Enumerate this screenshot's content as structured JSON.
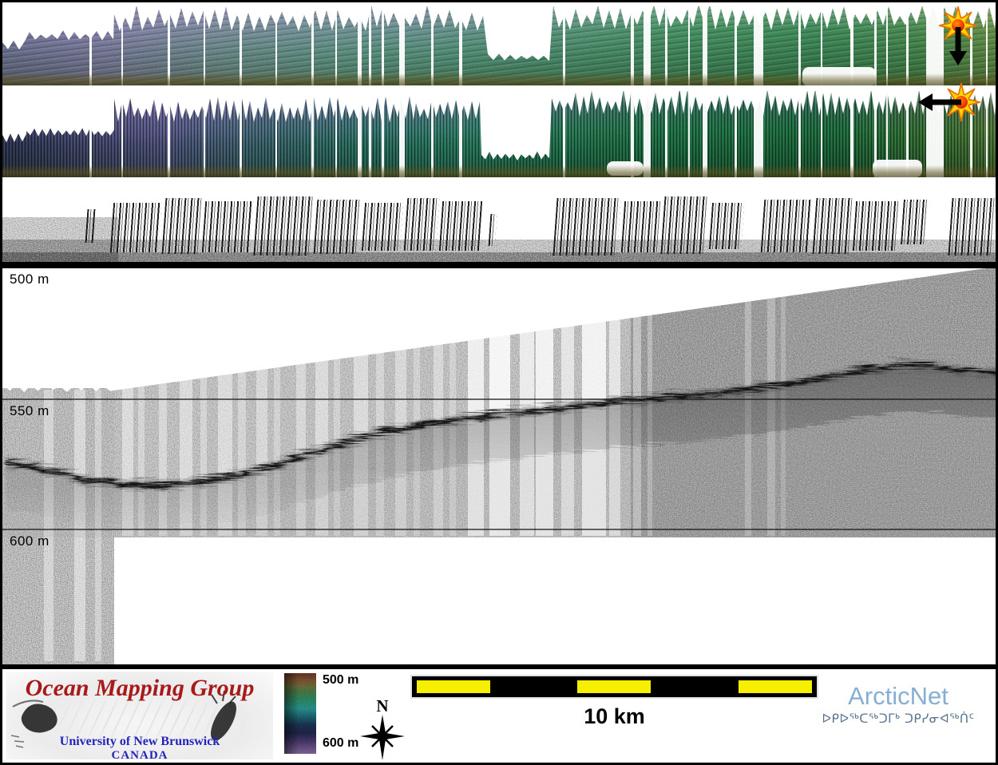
{
  "figure": {
    "description": "Ocean mapping survey figure: two coloured multibeam bathymetry swath strips, one greyscale backscatter strip, and a sub-bottom profiler section with depth gridlines",
    "strips": {
      "plan_view": "multibeam bathymetry shaded-relief plan view",
      "curtain_view": "multibeam bathymetry 3D curtain view",
      "backscatter": "greyscale backscatter strip"
    },
    "icons": {
      "sun_down": "sunburst with downward arrow (illumination direction)",
      "sun_left": "sunburst with leftward arrow (illumination direction)"
    }
  },
  "subbottom": {
    "depth_labels": {
      "top": "500 m",
      "middle": "550 m",
      "bottom": "600 m"
    }
  },
  "footer": {
    "omg_logo": {
      "title": "Ocean Mapping Group",
      "university": "University of New Brunswick",
      "country": "CANADA"
    },
    "colorbar": {
      "top_label": "500 m",
      "bottom_label": "600 m"
    },
    "compass_label": "N",
    "scalebar_label": "10 km",
    "arcticnet": {
      "wordmark": "ArcticNet",
      "inuktitut": "ᐅᑭᐅᖅᑕᖅᑐᒥᒃ ᑐᑭᓯᓂᐊᖅᑏᑦ"
    }
  },
  "colors": {
    "omg_red": "#a81a1a",
    "unb_blue": "#2424bb",
    "arcticnet_blue": "#87aed3",
    "scalebar_yellow": "#f6ef00",
    "frame_black": "#000000"
  }
}
